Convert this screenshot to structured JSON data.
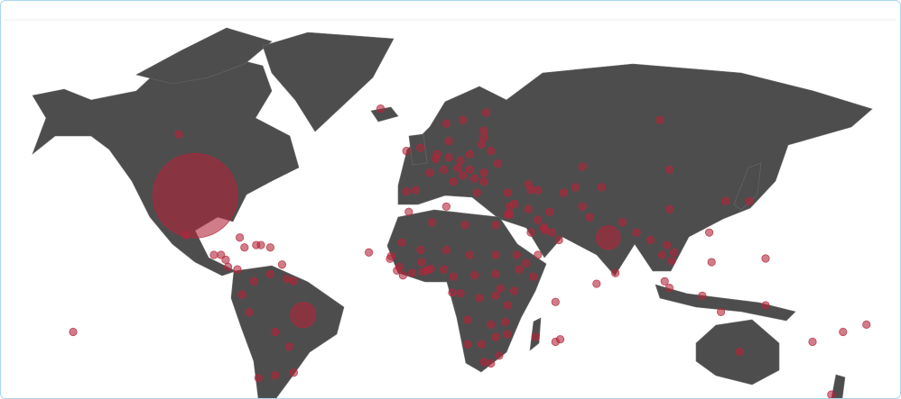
{
  "map": {
    "type": "bubble-map",
    "color": "#b3263b",
    "markers": [
      [
        -98,
        38,
        100
      ],
      [
        -105,
        58,
        0.8
      ],
      [
        -102,
        23,
        0.8
      ],
      [
        -79,
        22,
        0.8
      ],
      [
        -90,
        15,
        0.8
      ],
      [
        -87,
        15,
        0.8
      ],
      [
        -85,
        13,
        0.8
      ],
      [
        -84,
        10,
        0.8
      ],
      [
        -80,
        9,
        0.8
      ],
      [
        -73,
        4,
        0.8
      ],
      [
        -66,
        7,
        0.8
      ],
      [
        -77,
        18,
        0.8
      ],
      [
        -72,
        19,
        0.8
      ],
      [
        -70,
        19,
        0.8
      ],
      [
        -66,
        18,
        0.8
      ],
      [
        -61,
        11,
        0.8
      ],
      [
        -78,
        -1.5,
        0.8
      ],
      [
        -75,
        -9,
        0.8
      ],
      [
        -64,
        -17,
        0.8
      ],
      [
        -52,
        -10,
        9
      ],
      [
        -58,
        -23,
        0.8
      ],
      [
        -71,
        -35,
        0.8
      ],
      [
        -64,
        -34,
        0.8
      ],
      [
        -56,
        -33,
        0.8
      ],
      [
        -59,
        5,
        0.8
      ],
      [
        -56,
        4,
        0.8
      ],
      [
        -150,
        -17,
        0.8
      ],
      [
        -2,
        54,
        0.8
      ],
      [
        -8,
        53,
        0.8
      ],
      [
        -8,
        39.5,
        0.8
      ],
      [
        -4,
        40,
        0.8
      ],
      [
        2,
        46,
        0.8
      ],
      [
        10,
        51,
        0.8
      ],
      [
        12,
        43,
        0.8
      ],
      [
        19,
        52,
        0.8
      ],
      [
        16,
        62,
        0.8
      ],
      [
        9,
        61,
        0.8
      ],
      [
        26,
        64,
        0.8
      ],
      [
        10,
        56,
        0.8
      ],
      [
        5,
        52,
        0.8
      ],
      [
        4.5,
        50.5,
        0.8
      ],
      [
        8,
        47,
        0.8
      ],
      [
        14,
        47.5,
        0.8
      ],
      [
        15,
        50,
        0.8
      ],
      [
        19,
        47,
        0.8
      ],
      [
        25,
        46,
        0.8
      ],
      [
        31,
        49,
        0.8
      ],
      [
        28,
        53,
        0.8
      ],
      [
        22,
        39,
        0.8
      ],
      [
        35,
        39,
        0.8
      ],
      [
        21,
        44,
        0.8
      ],
      [
        16,
        45,
        0.8
      ],
      [
        25,
        43,
        0.8
      ],
      [
        -19,
        65,
        0.8
      ],
      [
        24,
        55,
        0.8
      ],
      [
        25,
        57,
        0.8
      ],
      [
        25,
        59,
        0.8
      ],
      [
        100,
        62,
        0.8
      ],
      [
        67,
        48,
        0.8
      ],
      [
        104,
        47,
        0.8
      ],
      [
        104,
        33,
        0.8
      ],
      [
        138,
        36,
        0.8
      ],
      [
        128,
        36,
        0.8
      ],
      [
        53,
        32,
        0.8
      ],
      [
        44,
        33,
        0.8
      ],
      [
        45,
        24,
        0.8
      ],
      [
        35,
        31,
        0.8
      ],
      [
        36,
        31,
        0.8
      ],
      [
        38,
        35,
        0.8
      ],
      [
        36,
        34,
        0.8
      ],
      [
        54,
        24,
        0.8
      ],
      [
        57,
        21,
        0.8
      ],
      [
        51,
        25,
        0.8
      ],
      [
        48,
        29,
        0.8
      ],
      [
        50.5,
        26,
        0.8
      ],
      [
        48,
        15,
        0.8
      ],
      [
        67,
        34,
        0.8
      ],
      [
        70,
        30,
        0.8
      ],
      [
        78,
        22,
        8
      ],
      [
        84,
        28,
        0.8
      ],
      [
        90,
        24,
        0.8
      ],
      [
        81,
        7.5,
        0.8
      ],
      [
        96,
        21,
        0.8
      ],
      [
        101,
        15,
        0.8
      ],
      [
        106,
        16,
        0.8
      ],
      [
        105,
        12.5,
        0.8
      ],
      [
        103,
        19,
        0.8
      ],
      [
        102,
        4,
        0.8
      ],
      [
        104,
        1.3,
        0.8
      ],
      [
        118,
        -2,
        0.8
      ],
      [
        122,
        12,
        0.8
      ],
      [
        121,
        24,
        0.8
      ],
      [
        64,
        41,
        0.8
      ],
      [
        59,
        39,
        0.8
      ],
      [
        75,
        41,
        0.8
      ],
      [
        44,
        42,
        0.8
      ],
      [
        48,
        40,
        0.8
      ],
      [
        45,
        40,
        0.8
      ],
      [
        73,
        3,
        0.8
      ],
      [
        -7,
        32,
        0.8
      ],
      [
        3,
        28,
        0.8
      ],
      [
        9,
        34,
        0.8
      ],
      [
        17,
        27,
        0.8
      ],
      [
        30,
        27,
        0.8
      ],
      [
        30,
        15,
        0.8
      ],
      [
        40,
        9,
        0.8
      ],
      [
        46,
        6,
        0.8
      ],
      [
        38,
        0,
        0.8
      ],
      [
        35,
        -6,
        0.8
      ],
      [
        32,
        1,
        0.8
      ],
      [
        30,
        -2,
        0.8
      ],
      [
        23,
        -3,
        0.8
      ],
      [
        15,
        -1,
        0.8
      ],
      [
        11.5,
        -0.7,
        0.8
      ],
      [
        12,
        6,
        0.8
      ],
      [
        8,
        9,
        0.8
      ],
      [
        9,
        17,
        0.8
      ],
      [
        19,
        15,
        0.8
      ],
      [
        -2,
        17,
        0.8
      ],
      [
        -10,
        20,
        0.8
      ],
      [
        -14.5,
        14.5,
        0.8
      ],
      [
        -15,
        13.4,
        0.8
      ],
      [
        -11,
        10,
        0.8
      ],
      [
        -12,
        8.5,
        0.8
      ],
      [
        -9.5,
        6.5,
        0.8
      ],
      [
        -5.5,
        7.5,
        0.8
      ],
      [
        -1,
        8,
        0.8
      ],
      [
        1,
        8.6,
        0.8
      ],
      [
        2.3,
        9.3,
        0.8
      ],
      [
        -1.5,
        12,
        0.8
      ],
      [
        21,
        6.6,
        0.8
      ],
      [
        30,
        7,
        0.8
      ],
      [
        18,
        -12,
        0.8
      ],
      [
        28,
        -14,
        0.8
      ],
      [
        30,
        -19,
        0.8
      ],
      [
        35,
        -18,
        0.8
      ],
      [
        34,
        -13,
        0.8
      ],
      [
        18,
        -22,
        0.8
      ],
      [
        24,
        -22,
        0.8
      ],
      [
        25,
        -29,
        0.8
      ],
      [
        47,
        -19,
        0.8
      ],
      [
        57.5,
        -20,
        0.8
      ],
      [
        55.5,
        -21,
        0.8
      ],
      [
        -24,
        16,
        0.8
      ],
      [
        55.5,
        -4.6,
        0.8
      ],
      [
        43,
        11.5,
        0.8
      ],
      [
        39,
        15,
        0.8
      ],
      [
        31.5,
        -26.5,
        0.8
      ],
      [
        28,
        -29.5,
        0.8
      ],
      [
        134,
        -25,
        0.8
      ],
      [
        173,
        -41,
        0.8
      ],
      [
        145,
        -6,
        0.8
      ],
      [
        178,
        -17,
        0.8
      ],
      [
        165,
        -21,
        0.8
      ],
      [
        145,
        13.5,
        0.8
      ],
      [
        126,
        -8.8,
        0.8
      ],
      [
        188,
        -14,
        0.8
      ]
    ]
  }
}
